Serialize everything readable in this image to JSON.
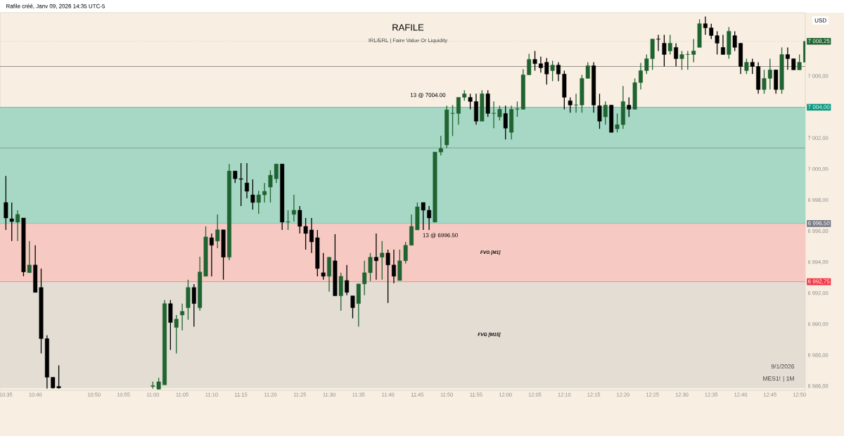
{
  "chart_data": {
    "type": "candlestick",
    "title": "RAFILE",
    "subtitle": "IRL/ERL | Faire Value Or Liquidity",
    "ylabel": "USD",
    "x": [
      "2026-01-09T10:35",
      "2026-01-09T10:36",
      "2026-01-09T10:37",
      "2026-01-09T10:38",
      "2026-01-09T10:39",
      "2026-01-09T10:40",
      "2026-01-09T10:41",
      "2026-01-09T10:42",
      "2026-01-09T10:43",
      "2026-01-09T10:44",
      "2026-01-09T11:00",
      "2026-01-09T11:01",
      "2026-01-09T11:02",
      "2026-01-09T11:03",
      "2026-01-09T11:04",
      "2026-01-09T11:05",
      "2026-01-09T11:06",
      "2026-01-09T11:07",
      "2026-01-09T11:08",
      "2026-01-09T11:09",
      "2026-01-09T11:10",
      "2026-01-09T11:11",
      "2026-01-09T11:12",
      "2026-01-09T11:13",
      "2026-01-09T11:14",
      "2026-01-09T11:15",
      "2026-01-09T11:16",
      "2026-01-09T11:17",
      "2026-01-09T11:18",
      "2026-01-09T11:19",
      "2026-01-09T11:20",
      "2026-01-09T11:21",
      "2026-01-09T11:22",
      "2026-01-09T11:23",
      "2026-01-09T11:24",
      "2026-01-09T11:25",
      "2026-01-09T11:26",
      "2026-01-09T11:27",
      "2026-01-09T11:28",
      "2026-01-09T11:29",
      "2026-01-09T11:30",
      "2026-01-09T11:31",
      "2026-01-09T11:32",
      "2026-01-09T11:33",
      "2026-01-09T11:34",
      "2026-01-09T11:35",
      "2026-01-09T11:36",
      "2026-01-09T11:37",
      "2026-01-09T11:38",
      "2026-01-09T11:39",
      "2026-01-09T11:40",
      "2026-01-09T11:41",
      "2026-01-09T11:42",
      "2026-01-09T11:43",
      "2026-01-09T11:44",
      "2026-01-09T11:45",
      "2026-01-09T11:46",
      "2026-01-09T11:47",
      "2026-01-09T11:48",
      "2026-01-09T11:49",
      "2026-01-09T11:50",
      "2026-01-09T11:51",
      "2026-01-09T11:52",
      "2026-01-09T11:53",
      "2026-01-09T11:54",
      "2026-01-09T11:55",
      "2026-01-09T11:56",
      "2026-01-09T11:57",
      "2026-01-09T11:58",
      "2026-01-09T11:59",
      "2026-01-09T12:00",
      "2026-01-09T12:01",
      "2026-01-09T12:02",
      "2026-01-09T12:03",
      "2026-01-09T12:04",
      "2026-01-09T12:05",
      "2026-01-09T12:06",
      "2026-01-09T12:07",
      "2026-01-09T12:08",
      "2026-01-09T12:09",
      "2026-01-09T12:10",
      "2026-01-09T12:11",
      "2026-01-09T12:12",
      "2026-01-09T12:13",
      "2026-01-09T12:14",
      "2026-01-09T12:15",
      "2026-01-09T12:16",
      "2026-01-09T12:17",
      "2026-01-09T12:18",
      "2026-01-09T12:19",
      "2026-01-09T12:20",
      "2026-01-09T12:21",
      "2026-01-09T12:22",
      "2026-01-09T12:23",
      "2026-01-09T12:24",
      "2026-01-09T12:25",
      "2026-01-09T12:26",
      "2026-01-09T12:27",
      "2026-01-09T12:28",
      "2026-01-09T12:29",
      "2026-01-09T12:30",
      "2026-01-09T12:31",
      "2026-01-09T12:32",
      "2026-01-09T12:33",
      "2026-01-09T12:34",
      "2026-01-09T12:35",
      "2026-01-09T12:36",
      "2026-01-09T12:37",
      "2026-01-09T12:38",
      "2026-01-09T12:39",
      "2026-01-09T12:40",
      "2026-01-09T12:41",
      "2026-01-09T12:42",
      "2026-01-09T12:43",
      "2026-01-09T12:44",
      "2026-01-09T12:45",
      "2026-01-09T12:46",
      "2026-01-09T12:47",
      "2026-01-09T12:48",
      "2026-01-09T12:49",
      "2026-01-09T12:50",
      "2026-01-09T12:51"
    ],
    "ohlc": [
      [
        6997.86,
        6999.57,
        6996.09,
        6996.86
      ],
      [
        6996.81,
        6997.86,
        6995.37,
        6996.63
      ],
      [
        6996.59,
        6997.36,
        6995.37,
        6997.09
      ],
      [
        6996.86,
        6996.86,
        6993.1,
        6993.38
      ],
      [
        6993.33,
        6995.37,
        6993.33,
        6993.83
      ],
      [
        6993.83,
        6995.1,
        6992.06,
        6992.06
      ],
      [
        6992.38,
        6993.6,
        6988.13,
        6989.08
      ],
      [
        6989.08,
        6989.3,
        6985.86,
        6986.59
      ],
      [
        6986.59,
        6986.59,
        6985.86,
        6985.9
      ],
      [
        6986.0,
        6987.36,
        6985.86,
        6985.9
      ],
      [
        6986.0,
        6986.3,
        6985.85,
        6986.05
      ],
      [
        6985.82,
        6986.55,
        6985.8,
        6986.3
      ],
      [
        6986.1,
        6991.57,
        6986.1,
        6991.34
      ],
      [
        6991.34,
        6991.57,
        6988.35,
        6990.12
      ],
      [
        6989.8,
        6990.6,
        6988.13,
        6990.34
      ],
      [
        6990.6,
        6991.34,
        6989.62,
        6990.84
      ],
      [
        6991.07,
        6992.88,
        6990.3,
        6992.38
      ],
      [
        6992.38,
        6992.6,
        6989.85,
        6991.34
      ],
      [
        6991.07,
        6994.37,
        6990.89,
        6993.38
      ],
      [
        6993.1,
        6996.32,
        6993.1,
        6995.64
      ],
      [
        6995.59,
        6995.86,
        6993.1,
        6995.1
      ],
      [
        6995.37,
        6997.09,
        6994.91,
        6996.1
      ],
      [
        6996.1,
        6996.1,
        6992.88,
        6994.33
      ],
      [
        6994.33,
        7000.34,
        6994.14,
        6999.89
      ],
      [
        6999.89,
        6999.89,
        6999.12,
        6999.39
      ],
      [
        6999.39,
        7000.39,
        6997.63,
        6999.35
      ],
      [
        6999.12,
        7000.39,
        6998.13,
        6998.58
      ],
      [
        6998.35,
        6999.35,
        6997.4,
        6997.86
      ],
      [
        6997.86,
        6998.62,
        6997.13,
        6998.35
      ],
      [
        6998.35,
        6999.12,
        6997.86,
        6998.58
      ],
      [
        6998.85,
        6999.94,
        6997.86,
        6999.62
      ],
      [
        6999.39,
        7000.34,
        6999.12,
        7000.34
      ],
      [
        7000.34,
        7000.34,
        6996.09,
        6996.59
      ],
      [
        6996.59,
        6997.36,
        6996.09,
        6996.62
      ],
      [
        6997.09,
        6998.35,
        6996.63,
        6997.36
      ],
      [
        6997.36,
        6997.63,
        6995.86,
        6996.32
      ],
      [
        6996.32,
        6996.86,
        6994.82,
        6995.86
      ],
      [
        6996.09,
        6996.86,
        6994.6,
        6995.32
      ],
      [
        6995.59,
        6996.09,
        6993.1,
        6993.6
      ],
      [
        6993.33,
        6994.6,
        6992.88,
        6993.1
      ],
      [
        6993.1,
        6994.33,
        6992.11,
        6994.33
      ],
      [
        6994.1,
        6995.82,
        6991.84,
        6991.84
      ],
      [
        6991.84,
        6993.33,
        6990.89,
        6993.1
      ],
      [
        6992.83,
        6993.83,
        6991.88,
        6992.06
      ],
      [
        6991.84,
        6991.84,
        6990.39,
        6991.07
      ],
      [
        6991.34,
        6992.61,
        6989.85,
        6992.61
      ],
      [
        6992.61,
        6994.1,
        6991.88,
        6993.33
      ],
      [
        6993.33,
        6994.6,
        6992.79,
        6994.33
      ],
      [
        6994.33,
        6995.86,
        6992.88,
        6994.1
      ],
      [
        6994.33,
        6995.37,
        6992.88,
        6994.6
      ],
      [
        6994.6,
        6994.82,
        6991.38,
        6993.83
      ],
      [
        6993.83,
        6994.82,
        6992.65,
        6993.1
      ],
      [
        6992.83,
        6994.82,
        6992.83,
        6994.1
      ],
      [
        6994.1,
        6995.32,
        6993.92,
        6995.1
      ],
      [
        6995.1,
        6997.09,
        6995.1,
        6996.32
      ],
      [
        6996.09,
        6997.86,
        6996.09,
        6997.58
      ],
      [
        6997.86,
        6997.86,
        6996.09,
        6997.36
      ],
      [
        6997.36,
        6997.63,
        6996.09,
        6996.86
      ],
      [
        6996.59,
        7001.11,
        6996.59,
        7001.11
      ],
      [
        7001.11,
        7002.15,
        7000.89,
        7001.34
      ],
      [
        7001.57,
        7004.1,
        7001.38,
        7003.83
      ],
      [
        7003.6,
        7004.14,
        7002.15,
        7003.62
      ],
      [
        7003.6,
        7004.64,
        7002.88,
        7004.64
      ],
      [
        7004.64,
        7005.1,
        7004.42,
        7004.87
      ],
      [
        7004.64,
        7004.87,
        7003.87,
        7004.37
      ],
      [
        7004.37,
        7004.87,
        7002.88,
        7003.1
      ],
      [
        7003.1,
        7005.1,
        7003.1,
        7004.87
      ],
      [
        7004.87,
        7005.1,
        7003.38,
        7003.6
      ],
      [
        7003.6,
        7004.37,
        7002.65,
        7003.62
      ],
      [
        7003.38,
        7004.1,
        7003.15,
        7003.87
      ],
      [
        7003.6,
        7004.1,
        7001.93,
        7002.65
      ],
      [
        7002.38,
        7004.1,
        7001.93,
        7003.87
      ],
      [
        7003.87,
        7004.37,
        7003.38,
        7003.9
      ],
      [
        7003.87,
        7006.45,
        7003.87,
        7006.09
      ],
      [
        7006.09,
        7007.45,
        7006.09,
        7007.09
      ],
      [
        7007.09,
        7007.63,
        7006.36,
        7006.81
      ],
      [
        7006.81,
        7007.27,
        7006.23,
        7006.54
      ],
      [
        7006.9,
        7007.18,
        7005.46,
        7006.14
      ],
      [
        7006.36,
        7007.0,
        7005.68,
        7006.72
      ],
      [
        7006.72,
        7006.9,
        7005.68,
        7006.14
      ],
      [
        7006.14,
        7006.36,
        7003.87,
        7004.64
      ],
      [
        7004.42,
        7004.64,
        7003.65,
        7004.14
      ],
      [
        7004.14,
        7004.87,
        7003.65,
        7004.16
      ],
      [
        7004.14,
        7006.09,
        7003.65,
        7005.86
      ],
      [
        7005.86,
        7006.9,
        7005.86,
        7006.68
      ],
      [
        7006.68,
        7006.9,
        7003.65,
        7004.14
      ],
      [
        7004.1,
        7004.87,
        7002.61,
        7003.1
      ],
      [
        7003.38,
        7004.37,
        7002.88,
        7004.14
      ],
      [
        7004.14,
        7004.14,
        7002.38,
        7002.38
      ],
      [
        7002.61,
        7003.6,
        7002.38,
        7002.88
      ],
      [
        7002.88,
        7005.37,
        7002.61,
        7004.37
      ],
      [
        7004.14,
        7004.64,
        7003.38,
        7003.87
      ],
      [
        7003.87,
        7005.86,
        7003.87,
        7005.59
      ],
      [
        7005.59,
        7006.86,
        7005.14,
        7006.36
      ],
      [
        7006.36,
        7007.4,
        7006.14,
        7007.13
      ],
      [
        7007.13,
        7008.4,
        7006.41,
        7008.4
      ],
      [
        7008.4,
        7008.67,
        7007.63,
        7008.38
      ],
      [
        7008.13,
        7008.67,
        7006.63,
        7007.4
      ],
      [
        7007.63,
        7008.67,
        7007.4,
        7008.13
      ],
      [
        7007.86,
        7008.13,
        7006.63,
        7007.13
      ],
      [
        7007.13,
        7007.63,
        7006.41,
        7007.4
      ],
      [
        7007.4,
        7007.63,
        7006.41,
        7007.42
      ],
      [
        7007.4,
        7008.4,
        7006.9,
        7007.63
      ],
      [
        7007.86,
        7009.67,
        7007.86,
        7009.39
      ],
      [
        7009.39,
        7009.85,
        7008.67,
        7009.12
      ],
      [
        7009.12,
        7009.39,
        7008.4,
        7008.62
      ],
      [
        7008.62,
        7008.9,
        7007.4,
        7008.13
      ],
      [
        7007.86,
        7008.67,
        7007.4,
        7007.4
      ],
      [
        7007.4,
        7009.17,
        7007.13,
        7008.9
      ],
      [
        7008.62,
        7008.9,
        7007.63,
        7007.86
      ],
      [
        7008.13,
        7008.13,
        7006.14,
        7006.63
      ],
      [
        7006.36,
        7007.13,
        7006.14,
        7006.9
      ],
      [
        7006.9,
        7007.13,
        7006.14,
        7006.63
      ],
      [
        7006.63,
        7006.9,
        7004.87,
        7005.14
      ],
      [
        7005.14,
        7006.41,
        7004.87,
        7005.86
      ],
      [
        7005.86,
        7007.13,
        7005.14,
        7006.41
      ],
      [
        7006.41,
        7006.41,
        7004.87,
        7005.14
      ],
      [
        7005.14,
        7007.86,
        7004.87,
        7007.4
      ],
      [
        7007.4,
        7007.86,
        7006.41,
        7007.13
      ],
      [
        7007.13,
        7007.13,
        7006.41,
        7006.41
      ],
      [
        7006.41,
        7007.4,
        7006.41,
        7006.9
      ],
      [
        7006.9,
        7008.3,
        7006.9,
        7008.25
      ]
    ],
    "xlim": [
      "2026-01-09T10:34",
      "2026-01-09T12:51"
    ],
    "xticks": [
      {
        "value": "2026-01-09T10:35",
        "label": "10:35"
      },
      {
        "value": "2026-01-09T10:40",
        "label": "10:40"
      },
      {
        "value": "2026-01-09T10:50",
        "label": "10:50"
      },
      {
        "value": "2026-01-09T10:55",
        "label": "10:55"
      },
      {
        "value": "2026-01-09T11:00",
        "label": "11:00"
      },
      {
        "value": "2026-01-09T11:05",
        "label": "11:05"
      },
      {
        "value": "2026-01-09T11:10",
        "label": "11:10"
      },
      {
        "value": "2026-01-09T11:15",
        "label": "11:15"
      },
      {
        "value": "2026-01-09T11:20",
        "label": "11:20"
      },
      {
        "value": "2026-01-09T11:25",
        "label": "11:25"
      },
      {
        "value": "2026-01-09T11:30",
        "label": "11:30"
      },
      {
        "value": "2026-01-09T11:35",
        "label": "11:35"
      },
      {
        "value": "2026-01-09T11:40",
        "label": "11:40"
      },
      {
        "value": "2026-01-09T11:45",
        "label": "11:45"
      },
      {
        "value": "2026-01-09T11:50",
        "label": "11:50"
      },
      {
        "value": "2026-01-09T11:55",
        "label": "11:55"
      },
      {
        "value": "2026-01-09T12:00",
        "label": "12:00"
      },
      {
        "value": "2026-01-09T12:05",
        "label": "12:05"
      },
      {
        "value": "2026-01-09T12:10",
        "label": "12:10"
      },
      {
        "value": "2026-01-09T12:15",
        "label": "12:15"
      },
      {
        "value": "2026-01-09T12:20",
        "label": "12:20"
      },
      {
        "value": "2026-01-09T12:25",
        "label": "12:25"
      },
      {
        "value": "2026-01-09T12:30",
        "label": "12:30"
      },
      {
        "value": "2026-01-09T12:35",
        "label": "12:35"
      },
      {
        "value": "2026-01-09T12:40",
        "label": "12:40"
      },
      {
        "value": "2026-01-09T12:45",
        "label": "12:45"
      },
      {
        "value": "2026-01-09T12:50",
        "label": "12:50"
      }
    ],
    "ylim": [
      6985.75,
      7010.1
    ],
    "yticks": [
      {
        "value": 6986,
        "label": "6 986,00"
      },
      {
        "value": 6988,
        "label": "6 988,00"
      },
      {
        "value": 6990,
        "label": "6 990,00"
      },
      {
        "value": 6992,
        "label": "6 992,00"
      },
      {
        "value": 6994,
        "label": "6 994,00"
      },
      {
        "value": 6996,
        "label": "6 996,00"
      },
      {
        "value": 6998,
        "label": "6 998,00"
      },
      {
        "value": 7000,
        "label": "7 000,00"
      },
      {
        "value": 7002,
        "label": "7 002,00"
      },
      {
        "value": 7006,
        "label": "7 006,00"
      }
    ],
    "ref_lines": [
      {
        "axis": "y",
        "value": 7006.63,
        "color": "#333333"
      },
      {
        "axis": "y",
        "value": 7001.38,
        "color": "#333333"
      },
      {
        "axis": "y",
        "value": 7008.25,
        "label": "7 008,25",
        "color": "#1f6330",
        "line_style": "dotted"
      },
      {
        "axis": "y",
        "value": 7004.0,
        "label": "7 004,00",
        "color": "#089981"
      },
      {
        "axis": "y",
        "value": 6996.5,
        "label": "6 996,50",
        "color": "#787b86"
      },
      {
        "axis": "y",
        "value": 6992.75,
        "label": "6 992,75",
        "color": "#f23645"
      }
    ],
    "bands": [
      {
        "axis": "y",
        "from": 6985.9,
        "to": 6992.75,
        "label": "FVG [M15]",
        "color": "#e3ddd4"
      },
      {
        "axis": "y",
        "from": 6992.75,
        "to": 6996.5,
        "label": "FVG [M1]",
        "color": "#f6cac3"
      },
      {
        "axis": "y",
        "from": 6996.5,
        "to": 7004.0,
        "color": "#a6d8c5"
      }
    ],
    "annotations": [
      "Rafile créé, Janv 09, 2026 14:35 UTC-5",
      "9/1/2026",
      "MES1! | 1M",
      {
        "text": "13 @ 7004.00",
        "x": "2026-01-09T11:50",
        "y": 7004.0
      },
      {
        "text": "13 @ 6996.50",
        "x": "2026-01-09T11:45",
        "y": 6996.5
      }
    ]
  }
}
